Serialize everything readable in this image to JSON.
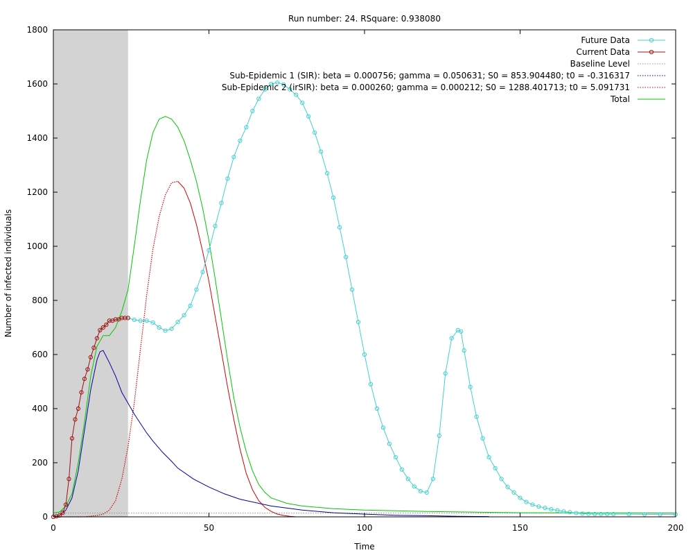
{
  "chart_data": {
    "type": "line",
    "title": "Run number: 24. RSquare: 0.938080",
    "xlabel": "Time",
    "ylabel": "Number of infected individuals",
    "xlim": [
      0,
      200
    ],
    "ylim": [
      0,
      1800
    ],
    "xticks": [
      0,
      50,
      100,
      150,
      200
    ],
    "yticks": [
      0,
      200,
      400,
      600,
      800,
      1000,
      1200,
      1400,
      1600,
      1800
    ],
    "shaded_x_range": [
      0,
      24
    ],
    "shaded_color": "#d3d3d3",
    "legend_position": "top-right",
    "series": [
      {
        "name": "Future Data",
        "color": "#40d0d0",
        "style": "line-markers",
        "x": [
          24,
          26,
          28,
          30,
          32,
          34,
          36,
          38,
          40,
          42,
          44,
          46,
          48,
          50,
          52,
          54,
          56,
          58,
          60,
          62,
          64,
          66,
          68,
          70,
          72,
          74,
          76,
          78,
          80,
          82,
          84,
          86,
          88,
          90,
          92,
          94,
          96,
          98,
          100,
          102,
          104,
          106,
          108,
          110,
          112,
          114,
          116,
          118,
          120,
          122,
          124,
          126,
          128,
          130,
          131,
          132,
          134,
          136,
          138,
          140,
          142,
          144,
          146,
          148,
          150,
          152,
          154,
          156,
          158,
          160,
          162,
          164,
          166,
          168,
          170,
          172,
          174,
          176,
          178,
          180,
          185,
          190,
          195,
          200
        ],
        "y": [
          735,
          728,
          725,
          725,
          718,
          700,
          688,
          695,
          720,
          745,
          780,
          840,
          905,
          985,
          1075,
          1160,
          1250,
          1330,
          1390,
          1440,
          1500,
          1545,
          1580,
          1600,
          1605,
          1598,
          1580,
          1560,
          1530,
          1480,
          1420,
          1350,
          1270,
          1180,
          1070,
          960,
          840,
          720,
          600,
          490,
          400,
          330,
          270,
          220,
          175,
          140,
          112,
          95,
          90,
          140,
          300,
          530,
          660,
          690,
          685,
          615,
          480,
          370,
          290,
          220,
          180,
          140,
          110,
          90,
          70,
          55,
          45,
          38,
          33,
          28,
          24,
          20,
          17,
          14,
          12,
          11,
          10,
          10,
          10,
          10,
          10,
          9,
          9,
          9
        ]
      },
      {
        "name": "Current Data",
        "color": "#a01010",
        "style": "line-markers",
        "x": [
          0,
          1,
          2,
          3,
          4,
          5,
          6,
          7,
          8,
          9,
          10,
          11,
          12,
          13,
          14,
          15,
          16,
          17,
          18,
          19,
          20,
          21,
          22,
          23,
          24
        ],
        "y": [
          0,
          2,
          5,
          15,
          45,
          140,
          290,
          360,
          400,
          460,
          510,
          545,
          590,
          625,
          660,
          690,
          700,
          710,
          725,
          725,
          730,
          730,
          735,
          735,
          735
        ]
      },
      {
        "name": "Baseline Level",
        "color": "#909090",
        "style": "dotted",
        "x": [
          0,
          200
        ],
        "y": [
          14,
          14
        ]
      },
      {
        "name": "Sub-Epidemic 1 (SIR): beta = 0.000756; gamma = 0.050631; S0 = 853.904480; t0 = -0.316317",
        "color": "#0000a0",
        "style": "line",
        "x": [
          0,
          2,
          4,
          6,
          8,
          10,
          12,
          14,
          15,
          16,
          18,
          20,
          22,
          24,
          26,
          28,
          30,
          32,
          35,
          38,
          40,
          45,
          50,
          55,
          60,
          70,
          80,
          90,
          100,
          110,
          120,
          130,
          140
        ],
        "y": [
          0,
          5,
          25,
          70,
          170,
          320,
          470,
          580,
          610,
          615,
          570,
          520,
          460,
          420,
          380,
          345,
          310,
          280,
          240,
          205,
          180,
          140,
          110,
          85,
          65,
          40,
          25,
          15,
          10,
          6,
          4,
          2,
          1
        ]
      },
      {
        "name": "Sub-Epidemic 2 (irSIR): beta = 0.000260; gamma = 0.000212; S0 = 1288.401713; t0 = 5.091731",
        "color": "#d00000",
        "style": "dotted-then-solid",
        "x": [
          0,
          10,
          14,
          16,
          18,
          20,
          22,
          24,
          26,
          28,
          30,
          32,
          34,
          36,
          38,
          40,
          42,
          44,
          46,
          48,
          50,
          52,
          54,
          56,
          58,
          60,
          62,
          64,
          66,
          68,
          70,
          72,
          74,
          76,
          78
        ],
        "y": [
          0,
          0,
          5,
          10,
          25,
          60,
          140,
          260,
          420,
          620,
          820,
          990,
          1110,
          1190,
          1235,
          1240,
          1215,
          1160,
          1080,
          980,
          870,
          740,
          610,
          480,
          360,
          250,
          160,
          100,
          60,
          35,
          20,
          10,
          5,
          2,
          0
        ]
      },
      {
        "name": "Total",
        "color": "#00c800",
        "style": "line",
        "x": [
          0,
          2,
          4,
          6,
          8,
          10,
          12,
          14,
          16,
          18,
          20,
          22,
          24,
          26,
          28,
          30,
          32,
          34,
          36,
          38,
          40,
          42,
          44,
          46,
          48,
          50,
          52,
          54,
          56,
          58,
          60,
          62,
          64,
          66,
          68,
          70,
          75,
          80,
          90,
          100,
          120,
          150,
          200
        ],
        "y": [
          14,
          18,
          40,
          85,
          200,
          350,
          520,
          630,
          670,
          670,
          700,
          760,
          840,
          1000,
          1170,
          1320,
          1420,
          1470,
          1480,
          1470,
          1440,
          1390,
          1320,
          1240,
          1140,
          1020,
          880,
          730,
          580,
          440,
          330,
          240,
          170,
          120,
          90,
          70,
          50,
          40,
          30,
          25,
          20,
          15,
          14
        ]
      }
    ]
  }
}
